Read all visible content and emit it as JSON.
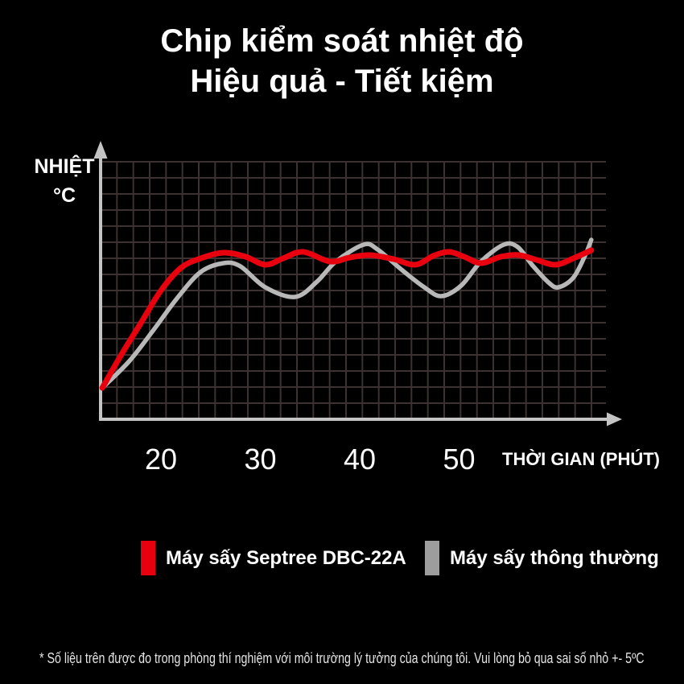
{
  "title": {
    "line1": "Chip kiểm soát nhiệt độ",
    "line2": "Hiệu quả - Tiết kiệm"
  },
  "y_axis": {
    "label_line1": "NHIỆT",
    "label_line2": "°C"
  },
  "x_axis": {
    "ticks": [
      "20",
      "30",
      "40",
      "50"
    ],
    "title": "THỜI GIAN (PHÚT)"
  },
  "legend": [
    {
      "label": "Máy sấy Septree DBC-22A",
      "color": "#e8000f"
    },
    {
      "label": "Máy sấy thông thường",
      "color": "#9d9d9d"
    }
  ],
  "footnote": "* Số liệu trên được đo trong phòng thí nghiệm với môi trường lý tưởng của chúng tôi. Vui lòng bỏ qua sai số nhỏ +- 5ºC",
  "colors": {
    "background": "#000000",
    "axis": "#c4c4c4",
    "grid": "#3b3231",
    "title_text": "#ffffff",
    "series_red": "#e8000f",
    "series_gray": "#b8b8b8"
  },
  "chart_data": {
    "type": "line",
    "title": "Chip kiểm soát nhiệt độ — Hiệu quả - Tiết kiệm",
    "xlabel": "THỜI GIAN (PHÚT)",
    "ylabel": "NHIỆT °C",
    "x_ticks": [
      20,
      30,
      40,
      50
    ],
    "y_axis_note": "no tick labels; values estimated in grid units (1 unit = 1 grid cell above time axis)",
    "grid": true,
    "legend_position": "bottom",
    "series": [
      {
        "name": "Máy sấy Septree DBC-22A",
        "color": "#e8000f",
        "points": [
          [
            14.1,
            1.95
          ],
          [
            16,
            4.0
          ],
          [
            18,
            6.0
          ],
          [
            20,
            8.0
          ],
          [
            22,
            9.4
          ],
          [
            24,
            10.0
          ],
          [
            26.3,
            10.35
          ],
          [
            28.5,
            10.1
          ],
          [
            30.5,
            9.6
          ],
          [
            32.3,
            10.0
          ],
          [
            34.3,
            10.4
          ],
          [
            37,
            9.8
          ],
          [
            39,
            10.05
          ],
          [
            41,
            10.2
          ],
          [
            43.4,
            9.95
          ],
          [
            45.6,
            9.6
          ],
          [
            47.4,
            10.15
          ],
          [
            49,
            10.4
          ],
          [
            50.5,
            10.1
          ],
          [
            52.2,
            9.7
          ],
          [
            54.2,
            10.1
          ],
          [
            56,
            10.2
          ],
          [
            57.8,
            9.9
          ],
          [
            59.7,
            9.6
          ],
          [
            61.5,
            10.0
          ],
          [
            63.3,
            10.5
          ]
        ]
      },
      {
        "name": "Máy sấy thông thường",
        "color": "#b8b8b8",
        "points": [
          [
            14.1,
            1.95
          ],
          [
            16.8,
            3.6
          ],
          [
            19.2,
            5.5
          ],
          [
            21.6,
            7.5
          ],
          [
            24,
            9.15
          ],
          [
            26.3,
            9.7
          ],
          [
            28,
            9.5
          ],
          [
            30.5,
            8.2
          ],
          [
            33.5,
            7.6
          ],
          [
            35.7,
            8.55
          ],
          [
            37.6,
            9.8
          ],
          [
            40.4,
            10.85
          ],
          [
            41.8,
            10.55
          ],
          [
            44.2,
            9.3
          ],
          [
            46.5,
            8.2
          ],
          [
            48.2,
            7.65
          ],
          [
            50.2,
            8.3
          ],
          [
            52.2,
            9.8
          ],
          [
            54.5,
            10.85
          ],
          [
            55.9,
            10.7
          ],
          [
            57.4,
            9.55
          ],
          [
            59,
            8.5
          ],
          [
            60,
            8.2
          ],
          [
            61.5,
            8.8
          ],
          [
            62.7,
            10.2
          ],
          [
            63.3,
            11.15
          ]
        ]
      }
    ]
  }
}
